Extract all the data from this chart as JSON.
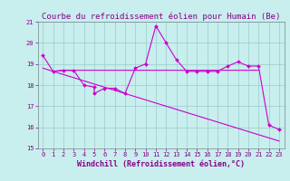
{
  "title": "Courbe du refroidissement éolien pour Humain (Be)",
  "xlabel": "Windchill (Refroidissement éolien,°C)",
  "bg_color": "#c8eeee",
  "line_color": "#cc00cc",
  "grid_color": "#99cccc",
  "xlim": [
    -0.5,
    23.5
  ],
  "ylim": [
    15,
    21
  ],
  "yticks": [
    15,
    16,
    17,
    18,
    19,
    20,
    21
  ],
  "xticks": [
    0,
    1,
    2,
    3,
    4,
    5,
    6,
    7,
    8,
    9,
    10,
    11,
    12,
    13,
    14,
    15,
    16,
    17,
    18,
    19,
    20,
    21,
    22,
    23
  ],
  "line1_x": [
    0,
    1,
    2,
    3,
    4,
    5,
    5,
    6,
    7,
    8,
    9,
    10,
    11,
    12,
    13,
    14,
    15,
    16,
    17,
    18,
    19,
    20,
    21,
    22,
    23
  ],
  "line1_y": [
    19.4,
    18.65,
    18.7,
    18.7,
    18.0,
    17.9,
    17.6,
    17.85,
    17.85,
    17.6,
    18.8,
    19.0,
    20.8,
    20.0,
    19.2,
    18.65,
    18.65,
    18.65,
    18.65,
    18.9,
    19.1,
    18.9,
    18.9,
    16.1,
    15.9
  ],
  "line2_x": [
    1,
    2,
    3,
    4,
    5,
    6,
    7,
    8,
    9,
    10,
    11,
    12,
    13,
    14,
    15,
    16,
    17,
    18,
    19,
    20,
    21
  ],
  "line2_y": [
    18.65,
    18.7,
    18.7,
    18.7,
    18.7,
    18.7,
    18.7,
    18.7,
    18.7,
    18.7,
    18.7,
    18.7,
    18.7,
    18.7,
    18.7,
    18.7,
    18.7,
    18.7,
    18.7,
    18.7,
    18.7
  ],
  "line3_x": [
    0,
    1,
    2,
    3,
    4,
    5,
    6,
    7,
    8,
    9,
    10,
    11,
    12,
    13,
    14,
    15,
    16,
    17,
    18,
    19,
    20,
    21,
    22,
    23
  ],
  "line3_y": [
    18.8,
    18.65,
    18.5,
    18.35,
    18.2,
    18.05,
    17.9,
    17.75,
    17.6,
    17.45,
    17.3,
    17.15,
    17.0,
    16.85,
    16.7,
    16.55,
    16.4,
    16.25,
    16.1,
    15.95,
    15.8,
    15.65,
    15.5,
    15.35
  ],
  "text_color": "#880088",
  "tick_fontsize": 5,
  "xlabel_fontsize": 6,
  "title_fontsize": 6.5
}
